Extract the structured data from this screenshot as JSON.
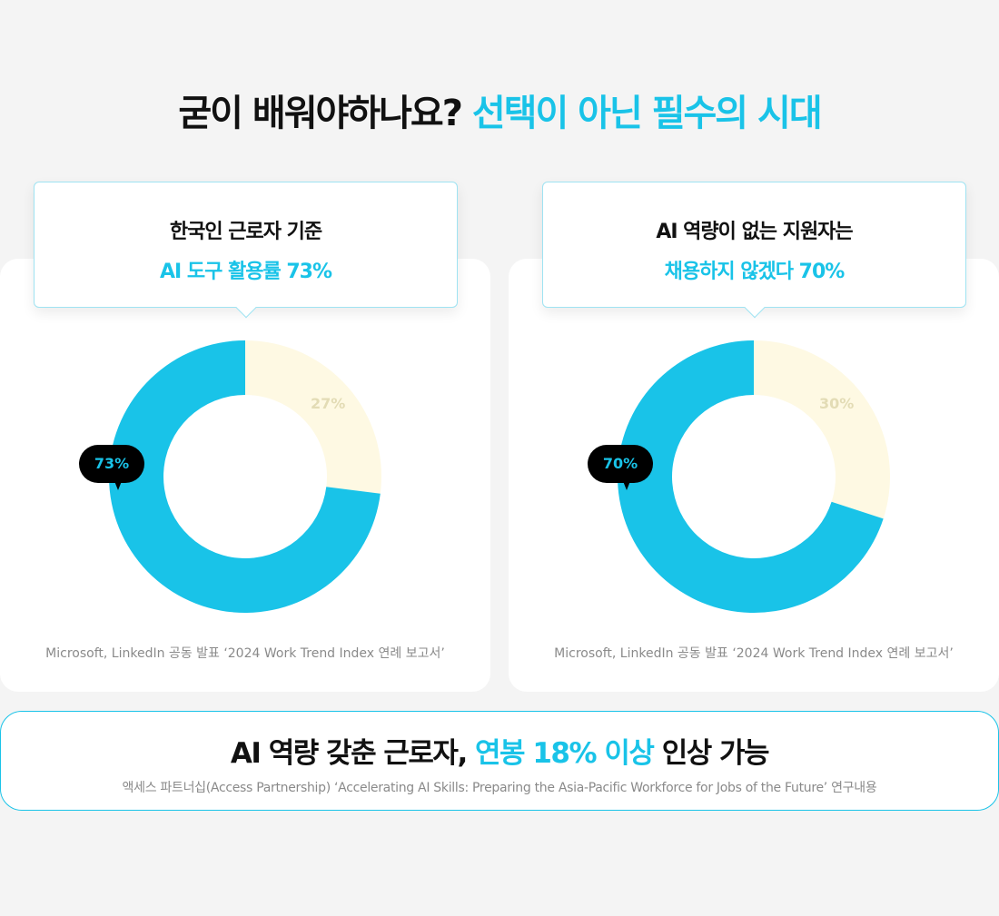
{
  "title": {
    "part1": "굳이 배워야하나요?",
    "part2": "선택이 아닌 필수의 시대"
  },
  "colors": {
    "accent": "#19c3e8",
    "minor": "#fef9e3",
    "tag_bg": "#000000"
  },
  "chart_data": [
    {
      "type": "pie",
      "title_line1": "한국인 근로자 기준",
      "title_line2": "AI 도구 활용률 73%",
      "slices": [
        {
          "value": 27,
          "label": "27%",
          "color": "#fef9e3"
        },
        {
          "value": 73,
          "label": "73%",
          "color": "#19c3e8"
        }
      ],
      "source": "Microsoft, LinkedIn 공동 발표 ‘2024 Work Trend Index 연례 보고서’"
    },
    {
      "type": "pie",
      "title_line1": "AI 역량이 없는 지원자는",
      "title_line2": "채용하지 않겠다 70%",
      "slices": [
        {
          "value": 30,
          "label": "30%",
          "color": "#fef9e3"
        },
        {
          "value": 70,
          "label": "70%",
          "color": "#19c3e8"
        }
      ],
      "source": "Microsoft, LinkedIn 공동 발표 ‘2024 Work Trend Index 연례 보고서’"
    }
  ],
  "bottom": {
    "head_a": "AI 역량 갖춘 근로자, ",
    "head_b": "연봉 18% 이상",
    "head_c": " 인상 가능",
    "source": "액세스 파트너십(Access Partnership) ‘Accelerating AI Skills: Preparing the Asia-Pacific Workforce for Jobs of the Future’ 연구내용"
  }
}
